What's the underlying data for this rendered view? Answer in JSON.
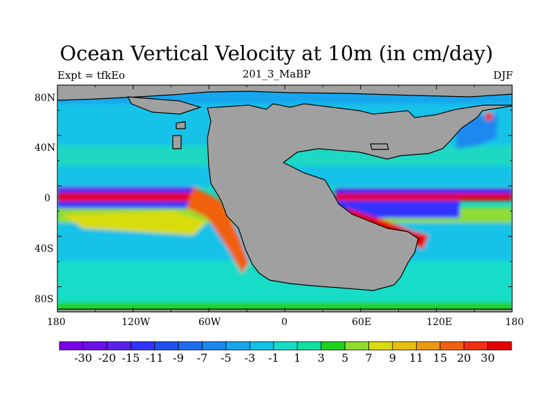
{
  "title": "Ocean Vertical Velocity at 10m (in cm/day)",
  "left_string": "Expt = tfkEo",
  "center_string": "201_3_MaBP",
  "right_string": "DJF",
  "x_ticks": [
    "180",
    "120W",
    "60W",
    "0",
    "60E",
    "120E",
    "180"
  ],
  "y_ticks": [
    "80N",
    "40N",
    "0",
    "40S",
    "80S"
  ],
  "colorbar": {
    "labels": [
      "-30",
      "-20",
      "-15",
      "-11",
      "-9",
      "-7",
      "-5",
      "-3",
      "-1",
      "1",
      "3",
      "5",
      "7",
      "9",
      "11",
      "15",
      "20",
      "30"
    ],
    "colors": [
      "#7a00e6",
      "#6a10e8",
      "#5a20ec",
      "#3333ff",
      "#2050f0",
      "#1e6cf0",
      "#1a88f0",
      "#18a6ee",
      "#12c2e8",
      "#16dcc8",
      "#10e0a0",
      "#20d020",
      "#90dc30",
      "#d8dc10",
      "#e8c010",
      "#ec9810",
      "#f06010",
      "#f03010",
      "#e60000"
    ]
  },
  "colors": {
    "land": "#a0a0a0",
    "ocean_background": "#1fe0c8",
    "upwelling": "#e60000",
    "downwelling": "#7a00e6"
  }
}
